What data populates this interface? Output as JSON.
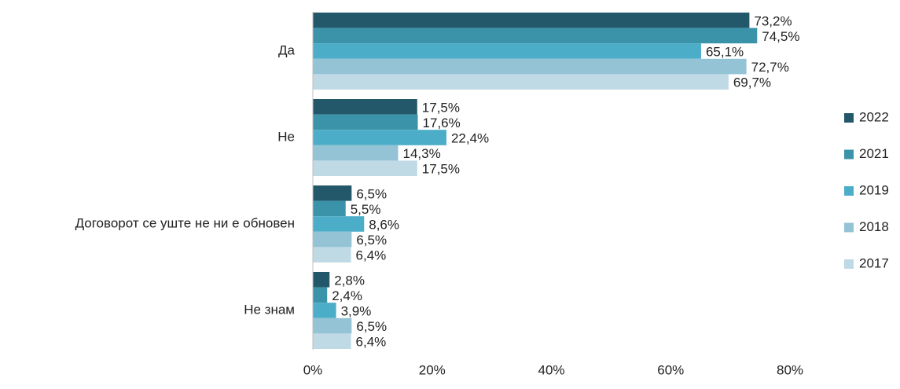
{
  "chart_data": {
    "type": "barh",
    "categories": [
      "Да",
      "Не",
      "Договорот се уште не ни е обновен",
      "Не знам"
    ],
    "series": [
      {
        "name": "2022",
        "color": "#23586a",
        "values": [
          73.2,
          17.5,
          6.5,
          2.8
        ],
        "value_labels": [
          "73,2%",
          "17,5%",
          "6,5%",
          "2,8%"
        ]
      },
      {
        "name": "2021",
        "color": "#3b93a9",
        "values": [
          74.5,
          17.6,
          5.5,
          2.4
        ],
        "value_labels": [
          "74,5%",
          "17,6%",
          "5,5%",
          "2,4%"
        ]
      },
      {
        "name": "2019",
        "color": "#4badc7",
        "values": [
          65.1,
          22.4,
          8.6,
          3.9
        ],
        "value_labels": [
          "65,1%",
          "22,4%",
          "8,6%",
          "3,9%"
        ]
      },
      {
        "name": "2018",
        "color": "#93c3d5",
        "values": [
          72.7,
          14.3,
          6.5,
          6.5
        ],
        "value_labels": [
          "72,7%",
          "14,3%",
          "6,5%",
          "6,5%"
        ]
      },
      {
        "name": "2017",
        "color": "#bfd9e5",
        "values": [
          69.7,
          17.5,
          6.4,
          6.4
        ],
        "value_labels": [
          "69,7%",
          "17,5%",
          "6,4%",
          "6,4%"
        ]
      }
    ],
    "xlim": [
      0,
      80
    ],
    "xticks": [
      {
        "value": 0,
        "label": "0%"
      },
      {
        "value": 20,
        "label": "20%"
      },
      {
        "value": 40,
        "label": "40%"
      },
      {
        "value": 60,
        "label": "60%"
      },
      {
        "value": 80,
        "label": "80%"
      }
    ],
    "legend": "right"
  }
}
